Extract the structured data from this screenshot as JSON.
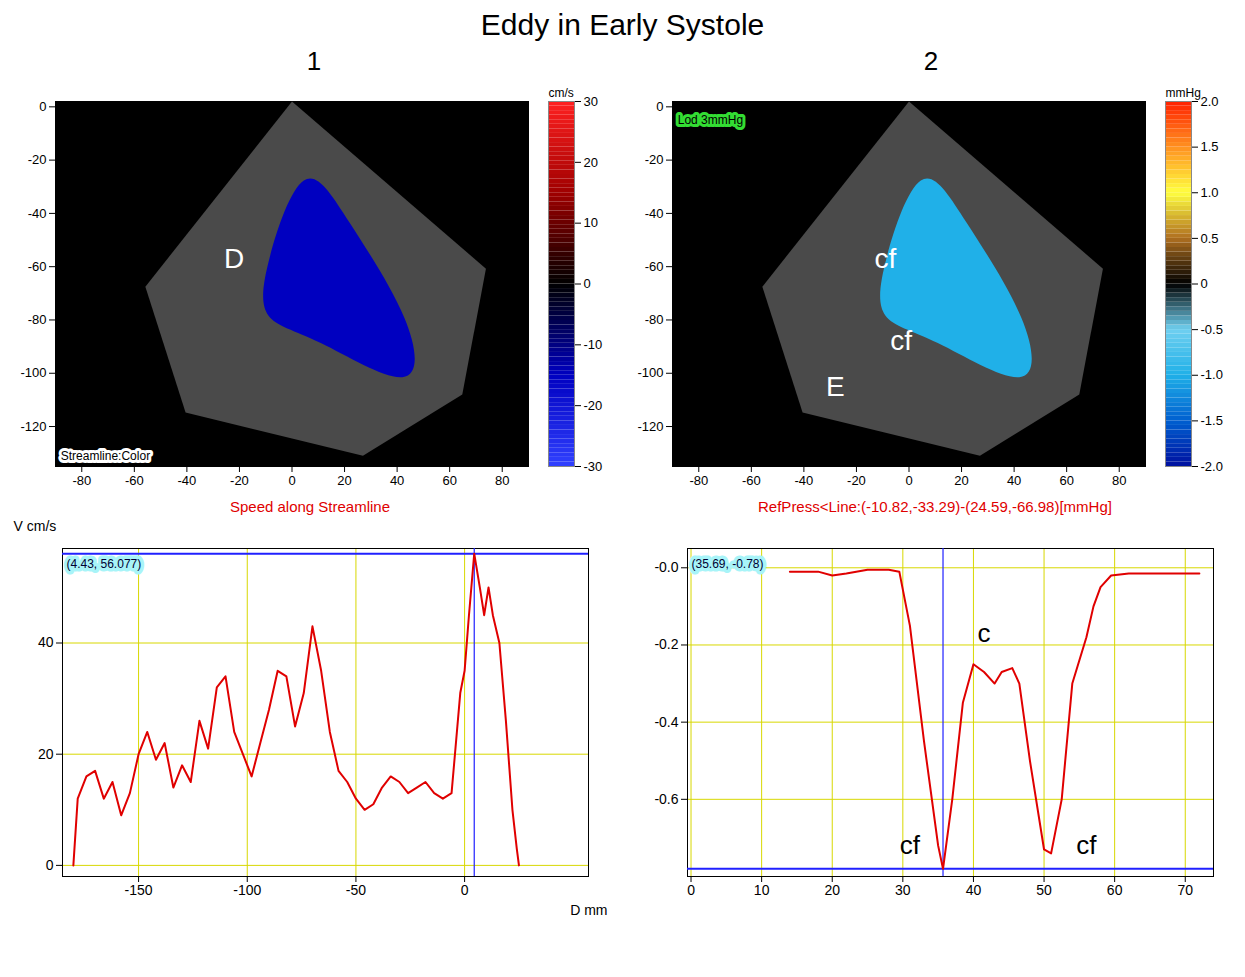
{
  "title": "Eddy in Early Systole",
  "chart_data": [
    {
      "type": "image",
      "panel": "1",
      "xlim": [
        -90,
        90
      ],
      "ylim": [
        -135,
        2
      ],
      "xticks": [
        -80,
        -60,
        -40,
        -20,
        0,
        20,
        40,
        60,
        80
      ],
      "yticks": [
        0,
        -20,
        -40,
        -60,
        -80,
        -100,
        -120
      ],
      "annotations": [
        {
          "text": "D",
          "x": -22,
          "y": -57
        }
      ],
      "boxed_labels": [
        {
          "text": "Streamline:Color",
          "x": -88,
          "y": -131,
          "color": "#ffffff"
        }
      ],
      "colorbar": {
        "label": "cm/s",
        "range": [
          -30,
          30
        ],
        "ticks": [
          -30,
          -20,
          -10,
          0,
          10,
          20,
          30
        ],
        "colors": [
          "#3040ff",
          "#0000c0",
          "#000000",
          "#a00000",
          "#ff2020"
        ]
      }
    },
    {
      "type": "image",
      "panel": "2",
      "xlim": [
        -90,
        90
      ],
      "ylim": [
        -135,
        2
      ],
      "xticks": [
        -80,
        -60,
        -40,
        -20,
        0,
        20,
        40,
        60,
        80
      ],
      "yticks": [
        0,
        -20,
        -40,
        -60,
        -80,
        -100,
        -120
      ],
      "annotations": [
        {
          "text": "cf",
          "x": -9,
          "y": -57
        },
        {
          "text": "cf",
          "x": -3,
          "y": -88
        },
        {
          "text": "E",
          "x": -28,
          "y": -105
        }
      ],
      "boxed_labels": [
        {
          "text": "Lod 3mmHg",
          "x": -88,
          "y": -5,
          "color": "#33dd33"
        }
      ],
      "colorbar": {
        "label": "mmHg",
        "range": [
          -2,
          2
        ],
        "ticks": [
          {
            "value": -2,
            "label": "-2.0"
          },
          -1.5,
          {
            "value": -1,
            "label": "-1.0"
          },
          -0.5,
          0,
          0.5,
          {
            "value": 1,
            "label": "1.0"
          },
          1.5,
          {
            "value": 2,
            "label": "2.0"
          }
        ],
        "colors": [
          "#0010a0",
          "#0060d0",
          "#20b0e8",
          "#70d0f0",
          "#000000",
          "#b07020",
          "#ffff40",
          "#ff9020",
          "#ff2000"
        ]
      }
    },
    {
      "type": "line",
      "title": "Speed along Streamline",
      "xlabel": "D mm",
      "ylabel": "V cm/s",
      "x": [
        -180,
        -178,
        -174,
        -170,
        -166,
        -162,
        -158,
        -154,
        -150,
        -146,
        -142,
        -138,
        -134,
        -130,
        -126,
        -122,
        -118,
        -114,
        -110,
        -106,
        -102,
        -98,
        -94,
        -90,
        -86,
        -82,
        -78,
        -74,
        -70,
        -66,
        -62,
        -58,
        -54,
        -50,
        -46,
        -42,
        -38,
        -34,
        -30,
        -26,
        -22,
        -18,
        -14,
        -10,
        -6,
        -2,
        0,
        2,
        4.43,
        7,
        9,
        11,
        13,
        16,
        19,
        22,
        24,
        25
      ],
      "values": [
        0,
        12,
        16,
        17,
        12,
        15,
        9,
        13,
        20,
        24,
        19,
        22,
        14,
        18,
        15,
        26,
        21,
        32,
        34,
        24,
        20,
        16,
        22,
        28,
        35,
        34,
        25,
        31,
        43,
        35,
        24,
        17,
        15,
        12,
        10,
        11,
        14,
        16,
        15,
        13,
        14,
        15,
        13,
        12,
        13,
        31,
        35,
        45,
        56.077,
        50,
        45,
        50,
        45,
        40,
        26,
        10,
        3,
        0
      ],
      "color": "#e00000",
      "xlim": [
        -185,
        57
      ],
      "ylim": [
        -2,
        57
      ],
      "xticks": [
        -150,
        -100,
        -50,
        0
      ],
      "yticks": [
        0,
        20,
        40
      ],
      "grid": true,
      "cursor": {
        "x": 4.43,
        "y": 56.077,
        "label": "(4.43, 56.077)"
      }
    },
    {
      "type": "line",
      "title": "RefPress<Line:(-10.82,-33.29)-(24.59,-66.98)[mmHg]",
      "x": [
        14,
        18,
        20,
        22,
        25,
        28,
        29.5,
        31,
        33,
        35,
        35.69,
        37,
        38.5,
        40,
        41.5,
        43,
        44,
        45.5,
        46.5,
        48,
        50,
        51,
        52.5,
        54,
        56,
        57,
        58,
        59.5,
        62,
        72
      ],
      "values": [
        -0.01,
        -0.01,
        -0.02,
        -0.015,
        -0.005,
        -0.005,
        -0.01,
        -0.15,
        -0.45,
        -0.72,
        -0.78,
        -0.6,
        -0.35,
        -0.25,
        -0.27,
        -0.3,
        -0.27,
        -0.26,
        -0.3,
        -0.5,
        -0.73,
        -0.74,
        -0.6,
        -0.3,
        -0.18,
        -0.1,
        -0.05,
        -0.02,
        -0.015,
        -0.015
      ],
      "color": "#e00000",
      "xlim": [
        -0.5,
        74
      ],
      "ylim": [
        -0.8,
        0.05
      ],
      "xticks": [
        0,
        10,
        20,
        30,
        40,
        50,
        60,
        70
      ],
      "yticks": [
        {
          "value": 0,
          "label": "-0.0"
        },
        -0.2,
        -0.4,
        -0.6
      ],
      "grid": true,
      "cursor": {
        "x": 35.69,
        "y": -0.78,
        "label": "(35.69, -0.78)"
      },
      "annotations": [
        {
          "text": "c",
          "x": 41.5,
          "y": -0.17
        },
        {
          "text": "cf",
          "x": 31,
          "y": -0.72
        },
        {
          "text": "cf",
          "x": 56,
          "y": -0.72
        }
      ]
    }
  ]
}
